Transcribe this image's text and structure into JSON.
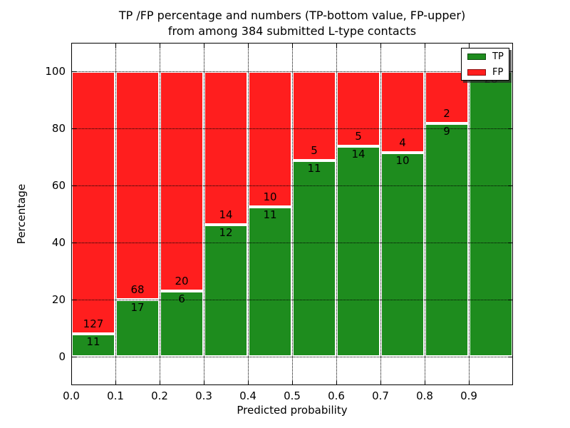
{
  "chart_data": {
    "type": "bar",
    "variant": "stacked-percentage-histogram",
    "title_line1": "TP /FP percentage and numbers (TP-bottom value, FP-upper)",
    "title_line2": "from among 384 submitted L-type contacts",
    "total_contacts": 384,
    "xlabel": "Predicted probability",
    "ylabel": "Percentage",
    "xlim": [
      0.0,
      1.0
    ],
    "ylim": [
      -10,
      110
    ],
    "bin_width": 0.1,
    "xtick_labels": [
      "0.0",
      "0.1",
      "0.2",
      "0.3",
      "0.4",
      "0.5",
      "0.6",
      "0.7",
      "0.8",
      "0.9"
    ],
    "ytick_values": [
      0,
      20,
      40,
      60,
      80,
      100
    ],
    "ytick_labels": [
      "0",
      "20",
      "40",
      "60",
      "80",
      "100"
    ],
    "series": [
      {
        "name": "TP",
        "color": "#1E8C1E",
        "counts": [
          11,
          17,
          6,
          12,
          11,
          11,
          14,
          10,
          9,
          28
        ]
      },
      {
        "name": "FP",
        "color": "#FF1E1E",
        "counts": [
          127,
          68,
          20,
          14,
          10,
          5,
          5,
          4,
          2,
          0
        ]
      }
    ],
    "tp_percent_of_bin": [
      7.97,
      20.0,
      23.08,
      46.15,
      52.38,
      68.75,
      73.68,
      71.43,
      81.82,
      100.0
    ],
    "legend": {
      "position": "upper-right",
      "entries": [
        "TP",
        "FP"
      ]
    },
    "grid": {
      "style": "dotted",
      "color": "#000000"
    },
    "bar_edge_color": "#FFFFFF",
    "background_color": "#FFFFFF",
    "text_color": "#000000"
  }
}
